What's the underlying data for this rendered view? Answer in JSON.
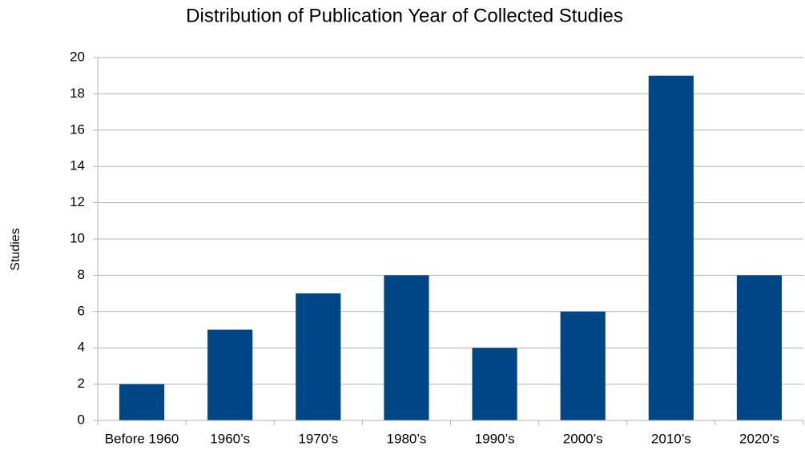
{
  "chart_data": {
    "type": "bar",
    "title": "Distribution of Publication Year of Collected Studies",
    "y_label": "Studies",
    "categories": [
      "Before 1960",
      "1960’s",
      "1970’s",
      "1980’s",
      "1990’s",
      "2000’s",
      "2010’s",
      "2020’s"
    ],
    "values": [
      2,
      5,
      7,
      8,
      4,
      6,
      19,
      8
    ],
    "color": "#004586",
    "ylim": [
      0,
      20
    ],
    "yticks": [
      0,
      2,
      4,
      6,
      8,
      10,
      12,
      14,
      16,
      18,
      20
    ],
    "grid": true
  }
}
